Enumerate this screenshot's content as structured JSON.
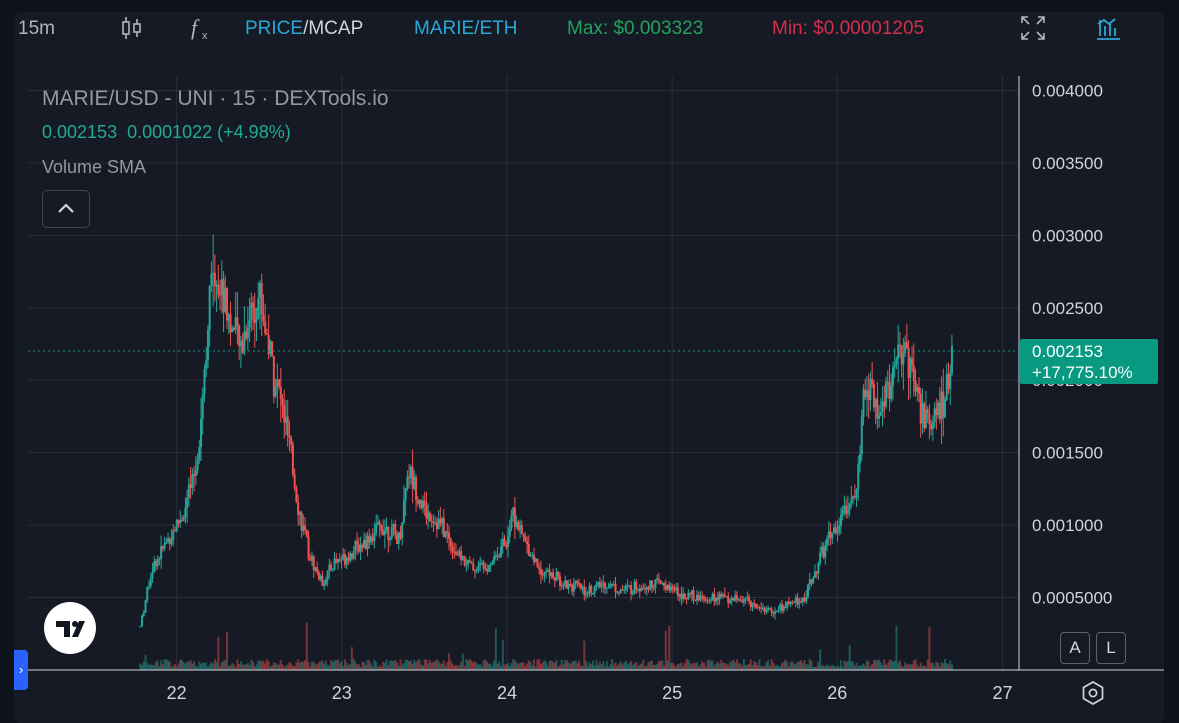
{
  "toolbar": {
    "interval": "15m",
    "price_label": "PRICE",
    "mcap_label": "/MCAP",
    "pair_label": "MARIE/ETH",
    "max_label": "Max: $0.003323",
    "min_label": "Min: $0.00001205"
  },
  "legend": {
    "title": "MARIE/USD - UNI · 15 · DEXTools.io",
    "values": "0.002153  0.0001022 (+4.98%)",
    "study": "Volume SMA"
  },
  "price_tag": {
    "price": "0.002153",
    "change": "+17,775.10%"
  },
  "buttons": {
    "auto": "A",
    "log": "L",
    "side_tab": "›"
  },
  "colors": {
    "background": "#161a25",
    "up": "#26a69a",
    "down": "#ef5350",
    "price_tag": "#089981",
    "grid": "#2a2e39"
  },
  "icons": [
    "candles-icon",
    "indicators-icon",
    "fullscreen-icon",
    "chart-bars-icon",
    "tradingview-logo-icon",
    "settings-icon"
  ],
  "chart_data": {
    "type": "candlestick",
    "title": "MARIE/USD - UNI · 15 · DEXTools.io",
    "ylim": [
      0,
      0.0041
    ],
    "y_ticks": [
      0.0005,
      0.001,
      0.0015,
      0.002,
      0.0025,
      0.003,
      0.0035,
      0.004
    ],
    "y_tick_labels": [
      "0.0005000",
      "0.001000",
      "0.001500",
      "0.002000",
      "0.002500",
      "0.003000",
      "0.003500",
      "0.004000"
    ],
    "x_ticks": [
      22,
      23,
      24,
      25,
      26,
      27
    ],
    "x_tick_labels": [
      "22",
      "23",
      "24",
      "25",
      "26",
      "27"
    ],
    "xlim": [
      21.1,
      27.1
    ],
    "last_price": 0.002153,
    "max": 0.003323,
    "series": [
      {
        "values": [
          [
            21.78,
            0.0003
          ],
          [
            21.85,
            0.0007
          ],
          [
            21.95,
            0.0009
          ],
          [
            22.05,
            0.0011
          ],
          [
            22.12,
            0.0014
          ],
          [
            22.17,
            0.0021
          ],
          [
            22.22,
            0.0028
          ],
          [
            22.3,
            0.0025
          ],
          [
            22.38,
            0.0022
          ],
          [
            22.45,
            0.0025
          ],
          [
            22.5,
            0.0026
          ],
          [
            22.58,
            0.0021
          ],
          [
            22.66,
            0.0017
          ],
          [
            22.74,
            0.0011
          ],
          [
            22.8,
            0.0008
          ],
          [
            22.88,
            0.0006
          ],
          [
            22.96,
            0.00075
          ],
          [
            23.05,
            0.0008
          ],
          [
            23.15,
            0.0009
          ],
          [
            23.25,
            0.001
          ],
          [
            23.35,
            0.0009
          ],
          [
            23.4,
            0.0014
          ],
          [
            23.5,
            0.0011
          ],
          [
            23.6,
            0.001
          ],
          [
            23.7,
            0.0008
          ],
          [
            23.8,
            0.0007
          ],
          [
            23.9,
            0.00075
          ],
          [
            24.0,
            0.0009
          ],
          [
            24.03,
            0.0011
          ],
          [
            24.1,
            0.0009
          ],
          [
            24.2,
            0.0007
          ],
          [
            24.35,
            0.0006
          ],
          [
            24.5,
            0.00055
          ],
          [
            24.6,
            0.0006
          ],
          [
            24.7,
            0.00055
          ],
          [
            24.8,
            0.00058
          ],
          [
            24.92,
            0.0006
          ],
          [
            25.0,
            0.00055
          ],
          [
            25.15,
            0.0005
          ],
          [
            25.3,
            0.0005
          ],
          [
            25.45,
            0.00048
          ],
          [
            25.6,
            0.0004
          ],
          [
            25.7,
            0.00045
          ],
          [
            25.8,
            0.0005
          ],
          [
            25.87,
            0.0007
          ],
          [
            25.95,
            0.0009
          ],
          [
            26.05,
            0.0011
          ],
          [
            26.12,
            0.0013
          ],
          [
            26.17,
            0.002
          ],
          [
            26.25,
            0.0018
          ],
          [
            26.33,
            0.002
          ],
          [
            26.42,
            0.0022
          ],
          [
            26.5,
            0.0018
          ],
          [
            26.58,
            0.0017
          ],
          [
            26.65,
            0.0019
          ],
          [
            26.7,
            0.002153
          ]
        ]
      }
    ]
  }
}
